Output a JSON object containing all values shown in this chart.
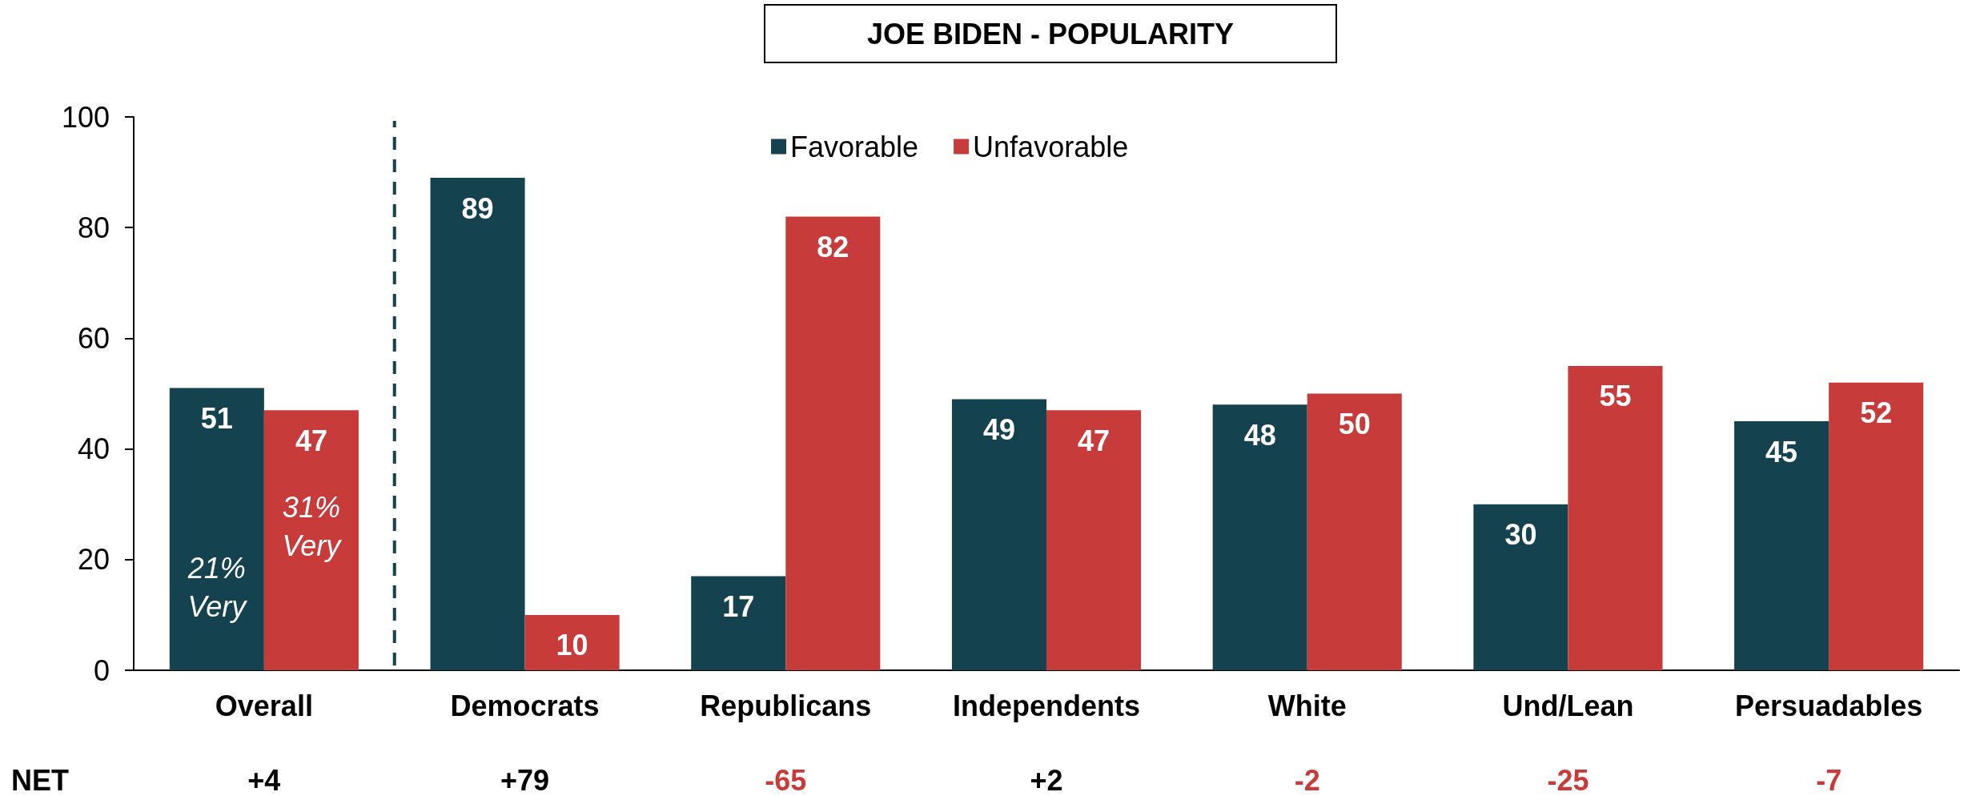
{
  "chart_data": {
    "type": "bar",
    "title": "JOE BIDEN - POPULARITY",
    "categories": [
      "Overall",
      "Democrats",
      "Republicans",
      "Independents",
      "White",
      "Und/Lean",
      "Persuadables"
    ],
    "series": [
      {
        "name": "Favorable",
        "color": "#15424f",
        "values": [
          51,
          89,
          17,
          49,
          48,
          30,
          45
        ]
      },
      {
        "name": "Unfavorable",
        "color": "#c83b3b",
        "values": [
          47,
          10,
          82,
          47,
          50,
          55,
          52
        ]
      }
    ],
    "ylim": [
      0,
      100
    ],
    "yticks": [
      0,
      20,
      40,
      60,
      80,
      100
    ],
    "grid": false,
    "legend": "top",
    "data_labels": true,
    "annotations": [
      {
        "text": "21% Very",
        "x": "Overall",
        "y": 15
      },
      {
        "text": "31% Very",
        "x": "Overall",
        "y": 26
      },
      "NET",
      "+4",
      "+79",
      "-65",
      "+2",
      "-2",
      "-25",
      "-7"
    ]
  }
}
